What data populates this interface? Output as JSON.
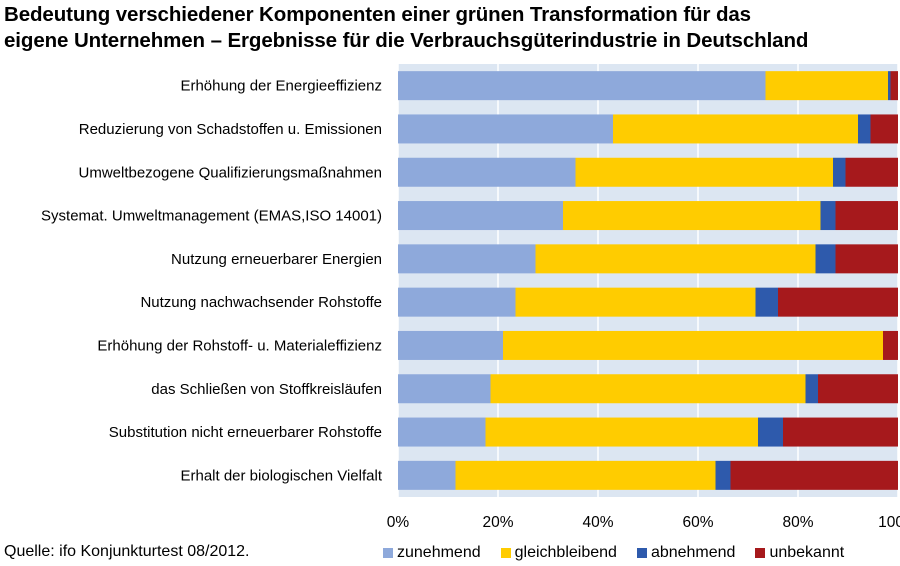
{
  "title_lines": [
    "Bedeutung verschiedener Komponenten einer grünen Transformation für das",
    "eigene Unternehmen – Ergebnisse für die Verbrauchsgüterindustrie in Deutschland"
  ],
  "source": "Quelle: ifo Konjunkturtest 08/2012.",
  "chart_data": {
    "type": "bar",
    "orientation": "horizontal",
    "stacked": true,
    "categories": [
      "Erhöhung der Energieeffizienz",
      "Reduzierung von Schadstoffen u. Emissionen",
      "Umweltbezogene Qualifizierungsmaßnahmen",
      "Systemat. Umweltmanagement (EMAS,ISO 14001)",
      "Nutzung erneuerbarer Energien",
      "Nutzung nachwachsender Rohstoffe",
      "Erhöhung der Rohstoff- u. Materialeffizienz",
      "das Schließen von Stoffkreisläufen",
      "Substitution nicht erneuerbarer Rohstoffe",
      "Erhalt der biologischen Vielfalt"
    ],
    "series": [
      {
        "name": "zunehmend",
        "color": "#8EA9DB",
        "values": [
          73.5,
          43,
          35.5,
          33,
          27.5,
          23.5,
          21,
          18.5,
          17.5,
          11.5
        ]
      },
      {
        "name": "gleichbleibend",
        "color": "#FFCC00",
        "values": [
          24.5,
          49,
          51.5,
          51.5,
          56,
          48,
          76,
          63,
          54.5,
          52
        ]
      },
      {
        "name": "abnehmend",
        "color": "#2E5AAC",
        "values": [
          0.5,
          2.5,
          2.5,
          3,
          4,
          4.5,
          0,
          2.5,
          5,
          3
        ]
      },
      {
        "name": "unbekannt",
        "color": "#A6191C",
        "values": [
          1.5,
          5.5,
          10.5,
          12.5,
          12.5,
          24,
          3,
          16,
          23,
          33.5
        ]
      }
    ],
    "xlim": [
      0,
      100
    ],
    "xticks": [
      "0%",
      "20%",
      "40%",
      "60%",
      "80%",
      "100%"
    ],
    "grid": true,
    "legend_position": "bottom",
    "plot_background": "#DCE6F2"
  }
}
